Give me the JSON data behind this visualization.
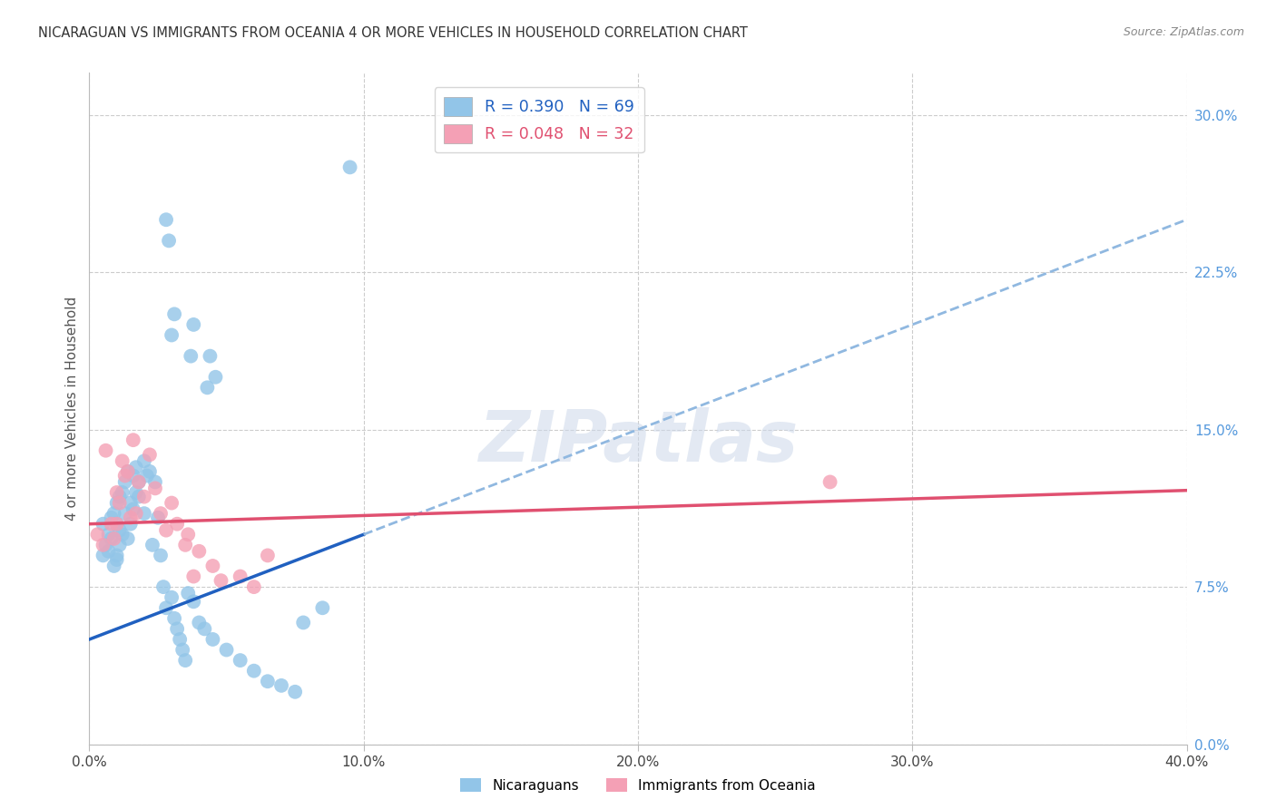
{
  "title": "NICARAGUAN VS IMMIGRANTS FROM OCEANIA 4 OR MORE VEHICLES IN HOUSEHOLD CORRELATION CHART",
  "source": "Source: ZipAtlas.com",
  "xlabel_tick_vals": [
    0.0,
    10.0,
    20.0,
    30.0,
    40.0
  ],
  "ylabel": "4 or more Vehicles in Household",
  "ylabel_tick_vals": [
    0.0,
    7.5,
    15.0,
    22.5,
    30.0
  ],
  "legend1_label": "R = 0.390   N = 69",
  "legend2_label": "R = 0.048   N = 32",
  "legend_bottom1": "Nicaraguans",
  "legend_bottom2": "Immigrants from Oceania",
  "blue_color": "#92c5e8",
  "pink_color": "#f4a0b5",
  "blue_line_color": "#2060c0",
  "blue_dash_color": "#90b8e0",
  "pink_line_color": "#e05070",
  "watermark": "ZIPatlas",
  "blue_x": [
    0.5,
    0.5,
    0.6,
    0.7,
    0.7,
    0.8,
    0.8,
    0.9,
    0.9,
    1.0,
    1.0,
    1.0,
    1.0,
    1.1,
    1.1,
    1.1,
    1.2,
    1.2,
    1.3,
    1.3,
    1.4,
    1.4,
    1.5,
    1.5,
    1.6,
    1.6,
    1.7,
    1.7,
    1.8,
    1.8,
    2.0,
    2.0,
    2.1,
    2.2,
    2.3,
    2.4,
    2.5,
    2.6,
    2.7,
    2.8,
    3.0,
    3.1,
    3.2,
    3.3,
    3.4,
    3.5,
    3.6,
    3.8,
    4.0,
    4.2,
    4.5,
    5.0,
    5.5,
    6.0,
    6.5,
    7.0,
    7.5,
    3.0,
    3.1,
    9.5,
    3.7,
    3.8,
    4.3,
    4.4,
    4.6,
    2.9,
    2.8,
    8.5,
    7.8
  ],
  "blue_y": [
    9.0,
    10.5,
    9.5,
    9.2,
    10.0,
    10.8,
    9.8,
    8.5,
    11.0,
    9.0,
    10.5,
    8.8,
    11.5,
    9.5,
    10.2,
    11.8,
    12.0,
    10.0,
    12.5,
    11.0,
    9.8,
    13.0,
    11.5,
    10.5,
    12.8,
    11.2,
    13.2,
    12.0,
    12.5,
    11.8,
    11.0,
    13.5,
    12.8,
    13.0,
    9.5,
    12.5,
    10.8,
    9.0,
    7.5,
    6.5,
    7.0,
    6.0,
    5.5,
    5.0,
    4.5,
    4.0,
    7.2,
    6.8,
    5.8,
    5.5,
    5.0,
    4.5,
    4.0,
    3.5,
    3.0,
    2.8,
    2.5,
    19.5,
    20.5,
    27.5,
    18.5,
    20.0,
    17.0,
    18.5,
    17.5,
    24.0,
    25.0,
    6.5,
    5.8
  ],
  "pink_x": [
    0.3,
    0.5,
    0.6,
    0.8,
    0.9,
    1.0,
    1.0,
    1.1,
    1.2,
    1.3,
    1.4,
    1.5,
    1.6,
    1.7,
    1.8,
    2.0,
    2.2,
    2.4,
    2.6,
    2.8,
    3.0,
    3.5,
    3.6,
    4.0,
    4.5,
    5.5,
    6.0,
    27.0,
    3.2,
    3.8,
    4.8,
    6.5
  ],
  "pink_y": [
    10.0,
    9.5,
    14.0,
    10.5,
    9.8,
    12.0,
    10.5,
    11.5,
    13.5,
    12.8,
    13.0,
    10.8,
    14.5,
    11.0,
    12.5,
    11.8,
    13.8,
    12.2,
    11.0,
    10.2,
    11.5,
    9.5,
    10.0,
    9.2,
    8.5,
    8.0,
    7.5,
    12.5,
    10.5,
    8.0,
    7.8,
    9.0
  ],
  "blue_R": 0.39,
  "pink_R": 0.048,
  "blue_N": 69,
  "pink_N": 32,
  "xlim": [
    0,
    40
  ],
  "ylim": [
    0,
    32
  ],
  "background_color": "#ffffff",
  "grid_color": "#cccccc",
  "blue_line_intercept": 5.0,
  "blue_line_slope": 0.5,
  "pink_line_intercept": 10.5,
  "pink_line_slope": 0.04,
  "blue_solid_end_x": 10.0
}
